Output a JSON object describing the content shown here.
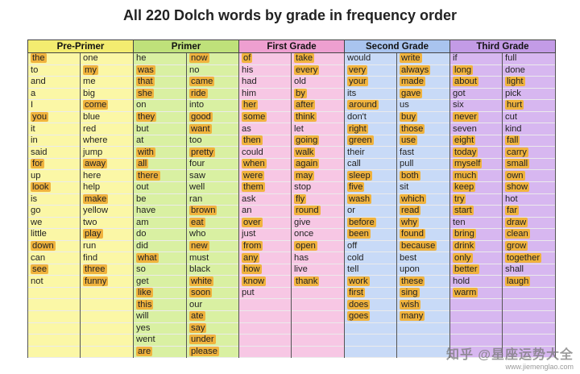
{
  "title": "All 220 Dolch words by grade in frequency order",
  "watermark": {
    "text": "知乎 @星座运势大全",
    "url": "www.jiemenglao.com"
  },
  "grades": [
    {
      "name": "Pre-Primer",
      "columns": [
        [
          "the",
          "to",
          "and",
          "a",
          "I",
          "you",
          "it",
          "in",
          "said",
          "for",
          "up",
          "look",
          "is",
          "go",
          "we",
          "little",
          "down",
          "can",
          "see",
          "not"
        ],
        [
          "one",
          "my",
          "me",
          "big",
          "come",
          "blue",
          "red",
          "where",
          "jump",
          "away",
          "here",
          "help",
          "make",
          "yellow",
          "two",
          "play",
          "run",
          "find",
          "three",
          "funny"
        ]
      ],
      "highlighted": [
        [
          "the",
          "you",
          "for",
          "look",
          "down",
          "see"
        ],
        [
          "my",
          "come",
          "away",
          "make",
          "play",
          "three",
          "funny"
        ]
      ]
    },
    {
      "name": "Primer",
      "columns": [
        [
          "he",
          "was",
          "that",
          "she",
          "on",
          "they",
          "but",
          "at",
          "with",
          "all",
          "there",
          "out",
          "be",
          "have",
          "am",
          "do",
          "did",
          "what",
          "so",
          "get",
          "like",
          "this",
          "will",
          "yes",
          "went",
          "are"
        ],
        [
          "now",
          "no",
          "came",
          "ride",
          "into",
          "good",
          "want",
          "too",
          "pretty",
          "four",
          "saw",
          "well",
          "ran",
          "brown",
          "eat",
          "who",
          "new",
          "must",
          "black",
          "white",
          "soon",
          "our",
          "ate",
          "say",
          "under",
          "please"
        ]
      ],
      "highlighted": [
        [
          "was",
          "that",
          "she",
          "they",
          "with",
          "all",
          "there",
          "what",
          "like",
          "this",
          "are"
        ],
        [
          "now",
          "came",
          "ride",
          "good",
          "want",
          "pretty",
          "brown",
          "eat",
          "new",
          "white",
          "soon",
          "ate",
          "say",
          "under",
          "please"
        ]
      ]
    },
    {
      "name": "First Grade",
      "columns": [
        [
          "of",
          "his",
          "had",
          "him",
          "her",
          "some",
          "as",
          "then",
          "could",
          "when",
          "were",
          "them",
          "ask",
          "an",
          "over",
          "just",
          "from",
          "any",
          "how",
          "know",
          "put"
        ],
        [
          "take",
          "every",
          "old",
          "by",
          "after",
          "think",
          "let",
          "going",
          "walk",
          "again",
          "may",
          "stop",
          "fly",
          "round",
          "give",
          "once",
          "open",
          "has",
          "live",
          "thank"
        ]
      ],
      "highlighted": [
        [
          "of",
          "her",
          "some",
          "then",
          "when",
          "were",
          "them",
          "over",
          "from",
          "any",
          "how",
          "know"
        ],
        [
          "take",
          "every",
          "by",
          "after",
          "think",
          "going",
          "walk",
          "again",
          "may",
          "fly",
          "round",
          "open",
          "thank"
        ]
      ]
    },
    {
      "name": "Second Grade",
      "columns": [
        [
          "would",
          "very",
          "your",
          "its",
          "around",
          "don't",
          "right",
          "green",
          "their",
          "call",
          "sleep",
          "five",
          "wash",
          "or",
          "before",
          "been",
          "off",
          "cold",
          "tell",
          "work",
          "first",
          "does",
          "goes"
        ],
        [
          "write",
          "always",
          "made",
          "gave",
          "us",
          "buy",
          "those",
          "use",
          "fast",
          "pull",
          "both",
          "sit",
          "which",
          "read",
          "why",
          "found",
          "because",
          "best",
          "upon",
          "these",
          "sing",
          "wish",
          "many"
        ]
      ],
      "highlighted": [
        [
          "very",
          "your",
          "around",
          "right",
          "green",
          "sleep",
          "five",
          "wash",
          "before",
          "been",
          "work",
          "first",
          "does",
          "goes"
        ],
        [
          "write",
          "always",
          "made",
          "gave",
          "buy",
          "those",
          "use",
          "both",
          "which",
          "read",
          "why",
          "found",
          "because",
          "these",
          "sing",
          "wish",
          "many"
        ]
      ]
    },
    {
      "name": "Third Grade",
      "columns": [
        [
          "if",
          "long",
          "about",
          "got",
          "six",
          "never",
          "seven",
          "eight",
          "today",
          "myself",
          "much",
          "keep",
          "try",
          "start",
          "ten",
          "bring",
          "drink",
          "only",
          "better",
          "hold",
          "warm"
        ],
        [
          "full",
          "done",
          "light",
          "pick",
          "hurt",
          "cut",
          "kind",
          "fall",
          "carry",
          "small",
          "own",
          "show",
          "hot",
          "far",
          "draw",
          "clean",
          "grow",
          "together",
          "shall",
          "laugh"
        ]
      ],
      "highlighted": [
        [
          "long",
          "about",
          "never",
          "eight",
          "today",
          "myself",
          "much",
          "keep",
          "try",
          "start",
          "bring",
          "drink",
          "only",
          "better",
          "warm"
        ],
        [
          "light",
          "hurt",
          "fall",
          "carry",
          "small",
          "own",
          "show",
          "far",
          "draw",
          "clean",
          "grow",
          "together",
          "laugh"
        ]
      ]
    }
  ],
  "colors": {
    "pre_primer": "#fbf7a6",
    "primer": "#d9f0a2",
    "first": "#f7c7e4",
    "second": "#c8daf7",
    "third": "#d7b7f0",
    "highlight": "#f0b33e"
  }
}
